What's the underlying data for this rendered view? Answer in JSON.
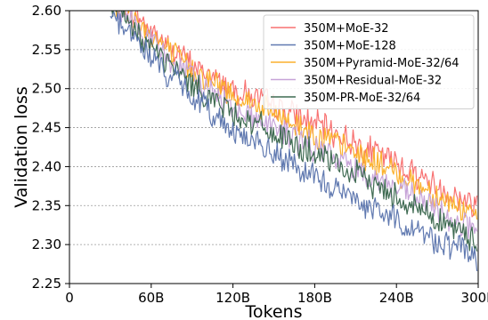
{
  "chart_data": {
    "type": "line",
    "xlabel": "Tokens",
    "ylabel": "Validation loss",
    "xlim": [
      0,
      300
    ],
    "ylim": [
      2.25,
      2.6
    ],
    "x_ticks": [
      0,
      60,
      120,
      180,
      240,
      300
    ],
    "x_tick_labels": [
      "0",
      "60B",
      "120B",
      "180B",
      "240B",
      "300B"
    ],
    "y_ticks": [
      2.25,
      2.3,
      2.35,
      2.4,
      2.45,
      2.5,
      2.55,
      2.6
    ],
    "y_tick_labels": [
      "2.25",
      "2.30",
      "2.35",
      "2.40",
      "2.45",
      "2.50",
      "2.55",
      "2.60"
    ],
    "grid": "horizontal dotted",
    "legend_position": "top-right",
    "x_units": "billions of tokens",
    "series": [
      {
        "name": "350M+MoE-32",
        "color": "#f87171",
        "x": [
          30,
          45,
          60,
          75,
          90,
          105,
          120,
          135,
          150,
          165,
          180,
          195,
          210,
          225,
          240,
          255,
          270,
          285,
          300
        ],
        "y": [
          2.62,
          2.6,
          2.575,
          2.55,
          2.53,
          2.515,
          2.5,
          2.49,
          2.478,
          2.466,
          2.455,
          2.443,
          2.43,
          2.418,
          2.405,
          2.39,
          2.375,
          2.36,
          2.35
        ]
      },
      {
        "name": "350M+MoE-128",
        "color": "#6079b0",
        "x": [
          30,
          45,
          60,
          75,
          90,
          105,
          120,
          135,
          150,
          165,
          180,
          195,
          210,
          225,
          240,
          255,
          270,
          285,
          300
        ],
        "y": [
          2.6,
          2.57,
          2.54,
          2.515,
          2.49,
          2.468,
          2.448,
          2.432,
          2.415,
          2.4,
          2.385,
          2.372,
          2.358,
          2.345,
          2.332,
          2.318,
          2.305,
          2.295,
          2.285
        ]
      },
      {
        "name": "350M+Pyramid-MoE-32/64",
        "color": "#fbb12d",
        "x": [
          30,
          45,
          60,
          75,
          90,
          105,
          120,
          135,
          150,
          165,
          180,
          195,
          210,
          225,
          240,
          255,
          270,
          285,
          300
        ],
        "y": [
          2.615,
          2.595,
          2.57,
          2.545,
          2.525,
          2.508,
          2.493,
          2.48,
          2.467,
          2.455,
          2.443,
          2.43,
          2.418,
          2.405,
          2.392,
          2.378,
          2.363,
          2.348,
          2.335
        ]
      },
      {
        "name": "350M+Residual-MoE-32",
        "color": "#c7a4d8",
        "x": [
          30,
          45,
          60,
          75,
          90,
          105,
          120,
          135,
          150,
          165,
          180,
          195,
          210,
          225,
          240,
          255,
          270,
          285,
          300
        ],
        "y": [
          2.61,
          2.587,
          2.56,
          2.535,
          2.513,
          2.495,
          2.478,
          2.464,
          2.45,
          2.437,
          2.424,
          2.411,
          2.398,
          2.385,
          2.372,
          2.358,
          2.344,
          2.33,
          2.318
        ]
      },
      {
        "name": "350M-PR-MoE-32/64",
        "color": "#3f6b52",
        "x": [
          30,
          45,
          60,
          75,
          90,
          105,
          120,
          135,
          150,
          165,
          180,
          195,
          210,
          225,
          240,
          255,
          270,
          285,
          300
        ],
        "y": [
          2.605,
          2.58,
          2.553,
          2.528,
          2.506,
          2.487,
          2.47,
          2.456,
          2.442,
          2.428,
          2.415,
          2.402,
          2.389,
          2.376,
          2.362,
          2.348,
          2.333,
          2.318,
          2.302
        ]
      }
    ]
  }
}
